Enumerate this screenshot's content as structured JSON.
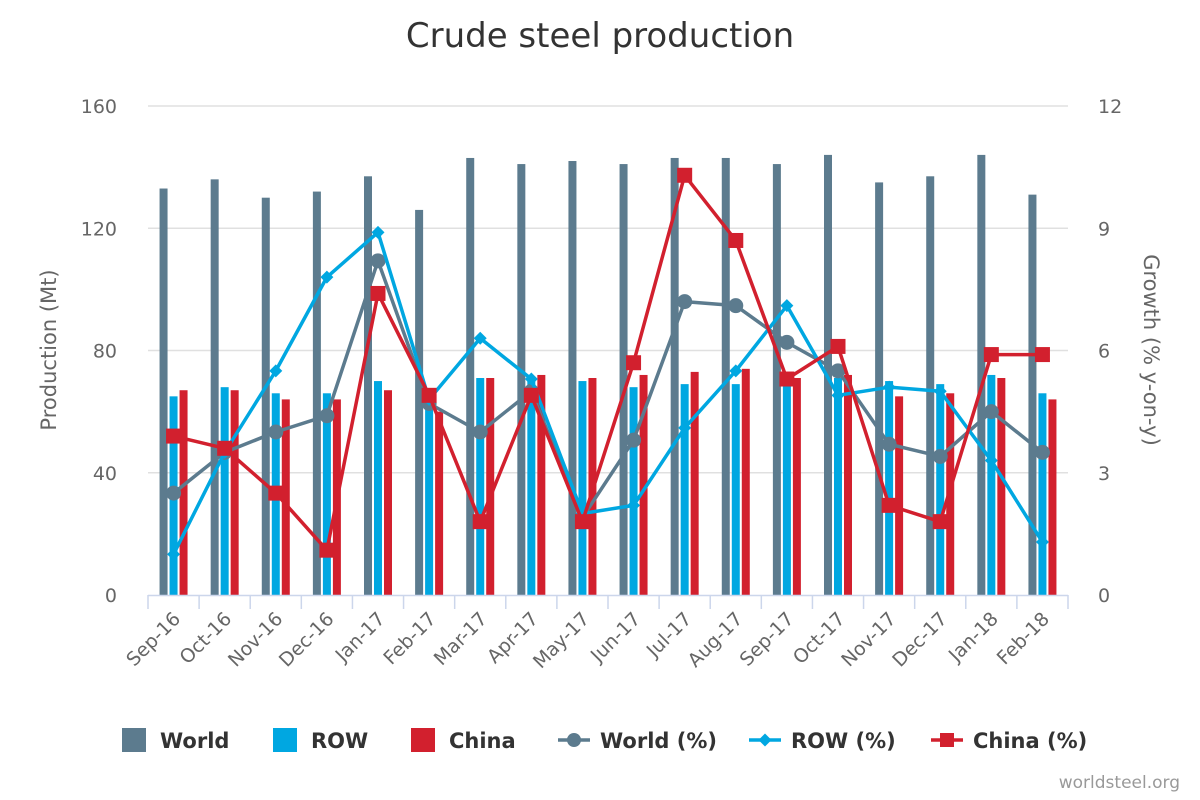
{
  "chart_data": {
    "type": "bar",
    "title": "Crude steel production",
    "categories": [
      "Sep-16",
      "Oct-16",
      "Nov-16",
      "Dec-16",
      "Jan-17",
      "Feb-17",
      "Mar-17",
      "Apr-17",
      "May-17",
      "Jun-17",
      "Jul-17",
      "Aug-17",
      "Sep-17",
      "Oct-17",
      "Nov-17",
      "Dec-17",
      "Jan-18",
      "Feb-18"
    ],
    "y_left": {
      "label": "Production (Mt)",
      "range": [
        0,
        160
      ],
      "ticks": [
        "0",
        "40",
        "80",
        "120",
        "160"
      ]
    },
    "y_right": {
      "label": "Growth (% y-on-y)",
      "range": [
        0,
        12
      ],
      "ticks": [
        "0",
        "3",
        "6",
        "9",
        "12"
      ]
    },
    "grid": true,
    "legend_position": "bottom",
    "series": [
      {
        "name": "World",
        "kind": "bar",
        "axis": "left",
        "color": "#5c7b8e",
        "values": [
          133,
          136,
          130,
          132,
          137,
          126,
          143,
          141,
          142,
          141,
          143,
          143,
          141,
          144,
          135,
          137,
          144,
          131
        ]
      },
      {
        "name": "ROW",
        "kind": "bar",
        "axis": "left",
        "color": "#00a7e1",
        "values": [
          65,
          68,
          66,
          66,
          70,
          64,
          71,
          71,
          70,
          68,
          69,
          69,
          70,
          71,
          70,
          69,
          72,
          66
        ]
      },
      {
        "name": "China",
        "kind": "bar",
        "axis": "left",
        "color": "#d2202e",
        "values": [
          67,
          67,
          64,
          64,
          67,
          60,
          71,
          72,
          71,
          72,
          73,
          74,
          71,
          72,
          65,
          66,
          71,
          64
        ]
      },
      {
        "name": "World (%)",
        "kind": "line",
        "axis": "right",
        "color": "#5c7b8e",
        "marker": "circle",
        "values": [
          2.5,
          3.5,
          4.0,
          4.4,
          8.2,
          4.7,
          4.0,
          5.0,
          1.9,
          3.8,
          7.2,
          7.1,
          6.2,
          5.5,
          3.7,
          3.4,
          4.5,
          3.5
        ]
      },
      {
        "name": "ROW (%)",
        "kind": "line",
        "axis": "right",
        "color": "#00a7e1",
        "marker": "diamond",
        "values": [
          1.0,
          3.5,
          5.5,
          7.8,
          8.9,
          4.8,
          6.3,
          5.3,
          2.0,
          2.2,
          4.1,
          5.5,
          7.1,
          4.9,
          5.1,
          5.0,
          3.3,
          1.3
        ]
      },
      {
        "name": "China (%)",
        "kind": "line",
        "axis": "right",
        "color": "#d2202e",
        "marker": "square",
        "values": [
          3.9,
          3.6,
          2.5,
          1.1,
          7.4,
          4.9,
          1.8,
          4.9,
          1.8,
          5.7,
          10.3,
          8.7,
          5.3,
          6.1,
          2.2,
          1.8,
          5.9,
          5.9
        ]
      }
    ],
    "credit": "worldsteel.org"
  }
}
